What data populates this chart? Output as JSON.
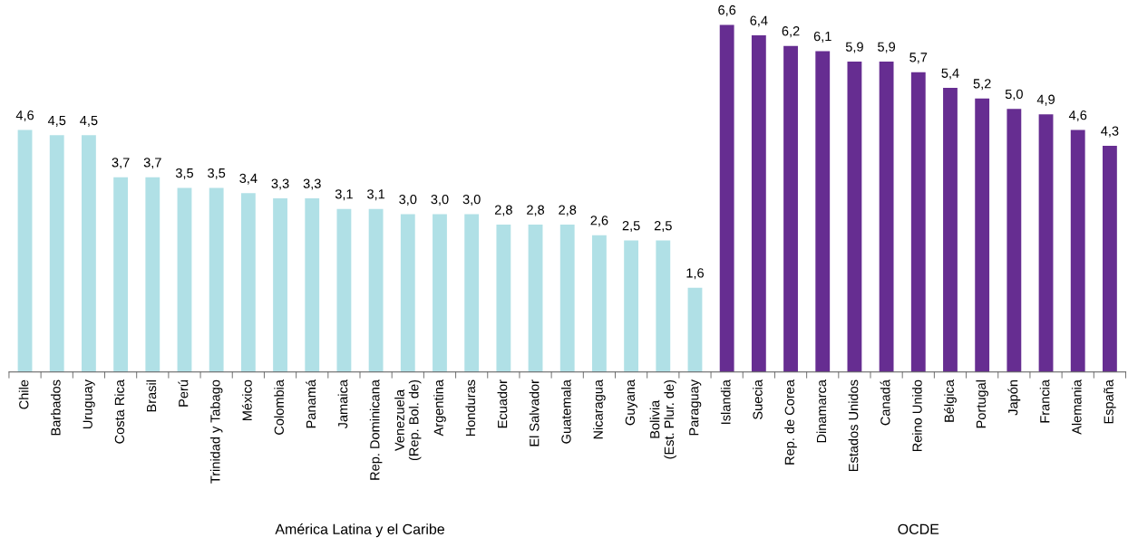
{
  "chart_data": {
    "type": "bar",
    "categories": [
      "Chile",
      "Barbados",
      "Uruguay",
      "Costa Rica",
      "Brasil",
      "Perú",
      "Trinidad y Tabago",
      "México",
      "Colombia",
      "Panamá",
      "Jamaica",
      "Rep. Dominicana",
      "Venezuela\n(Rep. Bol. de)",
      "Argentina",
      "Honduras",
      "Ecuador",
      "El Salvador",
      "Guatemala",
      "Nicaragua",
      "Guyana",
      "Bolivia\n(Est. Plur. de)",
      "Paraguay",
      "Islandia",
      "Suecia",
      "Rep. de Corea",
      "Dinamarca",
      "Estados Unidos",
      "Canadá",
      "Reino Unido",
      "Bélgica",
      "Portugal",
      "Japón",
      "Francia",
      "Alemania",
      "España"
    ],
    "values": [
      4.6,
      4.5,
      4.5,
      3.7,
      3.7,
      3.5,
      3.5,
      3.4,
      3.3,
      3.3,
      3.1,
      3.1,
      3.0,
      3.0,
      3.0,
      2.8,
      2.8,
      2.8,
      2.6,
      2.5,
      2.5,
      1.6,
      6.6,
      6.4,
      6.2,
      6.1,
      5.9,
      5.9,
      5.7,
      5.4,
      5.2,
      5.0,
      4.9,
      4.6,
      4.3
    ],
    "colors": [
      "#b0e0e6",
      "#b0e0e6",
      "#b0e0e6",
      "#b0e0e6",
      "#b0e0e6",
      "#b0e0e6",
      "#b0e0e6",
      "#b0e0e6",
      "#b0e0e6",
      "#b0e0e6",
      "#b0e0e6",
      "#b0e0e6",
      "#b0e0e6",
      "#b0e0e6",
      "#b0e0e6",
      "#b0e0e6",
      "#b0e0e6",
      "#b0e0e6",
      "#b0e0e6",
      "#b0e0e6",
      "#b0e0e6",
      "#b0e0e6",
      "#662d91",
      "#662d91",
      "#662d91",
      "#662d91",
      "#662d91",
      "#662d91",
      "#662d91",
      "#662d91",
      "#662d91",
      "#662d91",
      "#662d91",
      "#662d91",
      "#662d91"
    ],
    "value_labels": [
      "4,6",
      "4,5",
      "4,5",
      "3,7",
      "3,7",
      "3,5",
      "3,5",
      "3,4",
      "3,3",
      "3,3",
      "3,1",
      "3,1",
      "3,0",
      "3,0",
      "3,0",
      "2,8",
      "2,8",
      "2,8",
      "2,6",
      "2,5",
      "2,5",
      "1,6",
      "6,6",
      "6,4",
      "6,2",
      "6,1",
      "5,9",
      "5,9",
      "5,7",
      "5,4",
      "5,2",
      "5,0",
      "4,9",
      "4,6",
      "4,3"
    ],
    "grid": false,
    "legend": false,
    "annotations": [
      "América Latina y el Caribe",
      "OCDE"
    ]
  }
}
